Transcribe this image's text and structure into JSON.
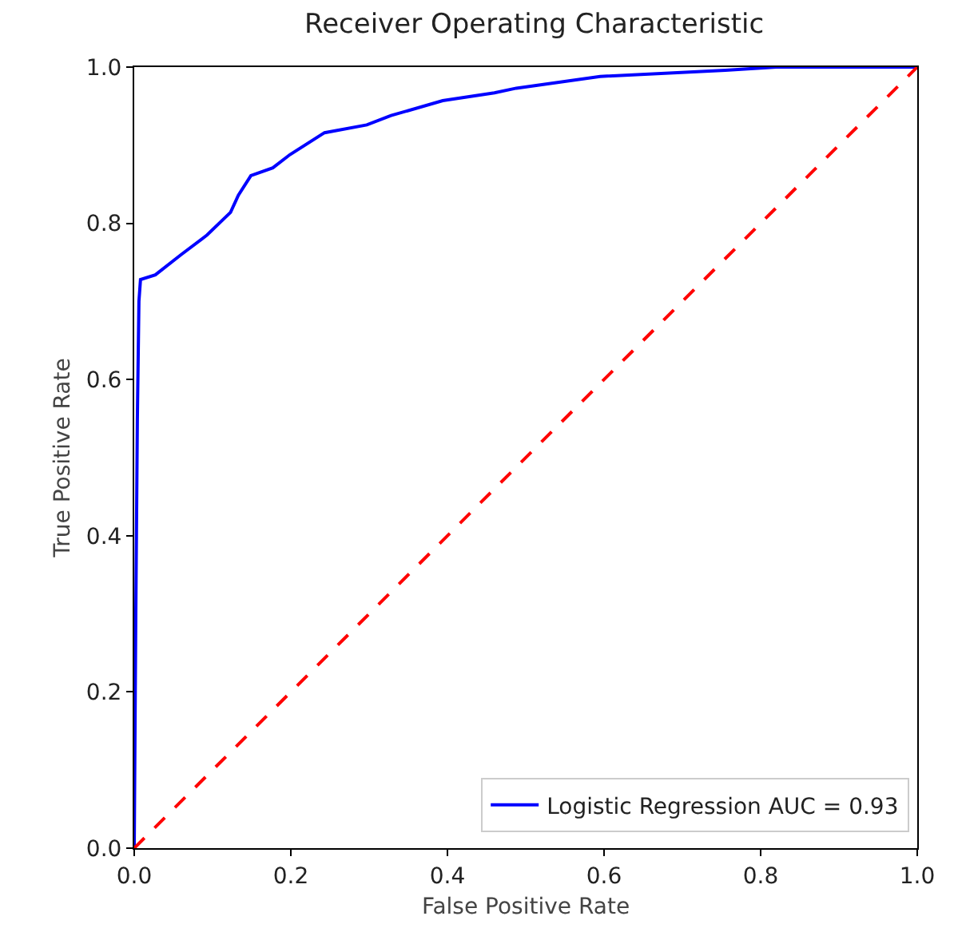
{
  "chart_data": {
    "type": "line",
    "title": "Receiver Operating Characteristic",
    "xlabel": "False Positive Rate",
    "ylabel": "True Positive Rate",
    "series": [
      {
        "name": "Logistic Regression AUC = 0.93",
        "color": "#0000ff",
        "line_style": "solid",
        "x": [
          0,
          0.002,
          0.004,
          0.006,
          0.008,
          0.027,
          0.06,
          0.093,
          0.123,
          0.133,
          0.149,
          0.177,
          0.199,
          0.243,
          0.297,
          0.328,
          0.394,
          0.46,
          0.488,
          0.595,
          0.755,
          0.82,
          1
        ],
        "values": [
          0,
          0.3,
          0.55,
          0.7,
          0.728,
          0.734,
          0.76,
          0.785,
          0.814,
          0.836,
          0.861,
          0.871,
          0.888,
          0.916,
          0.926,
          0.938,
          0.957,
          0.967,
          0.973,
          0.988,
          0.996,
          1,
          1
        ]
      },
      {
        "color": "#ff0000",
        "line_style": "dashed",
        "x": [
          0,
          1
        ],
        "values": [
          0,
          1
        ]
      }
    ],
    "xlim": [
      0,
      1
    ],
    "ylim": [
      0,
      1
    ],
    "xticks": [
      {
        "value": 0,
        "label": "0.0"
      },
      0.2,
      0.4,
      0.6,
      0.8,
      {
        "value": 1,
        "label": "1.0"
      }
    ],
    "yticks": [
      {
        "value": 0,
        "label": "0.0"
      },
      0.2,
      0.4,
      0.6,
      0.8,
      {
        "value": 1,
        "label": "1.0"
      }
    ],
    "grid": false,
    "legend": "bottom right",
    "marker": "none"
  }
}
